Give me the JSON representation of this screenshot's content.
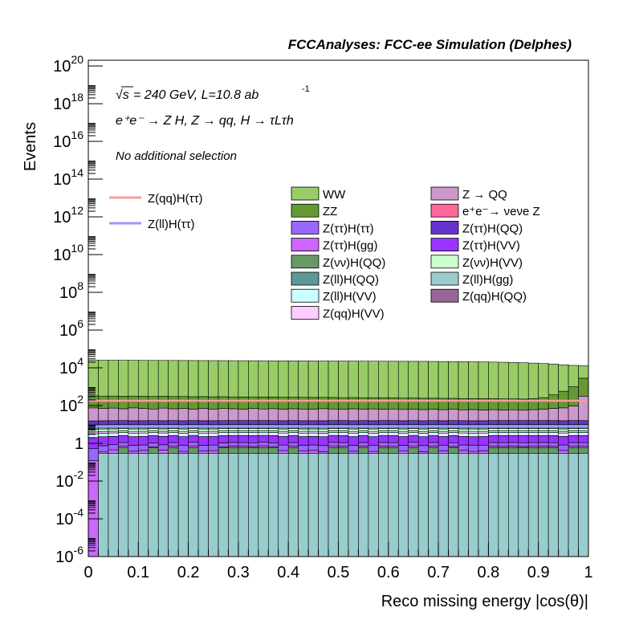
{
  "header": {
    "title": "FCCAnalyses: FCC-ee Simulation (Delphes)"
  },
  "annotations": {
    "line1_sqrt": "√s",
    "line1_rest": "= 240 GeV, L=10.8 ab",
    "line1_exp": "-1",
    "line2": "e⁺e⁻ → Z H, Z → qq, H → τLτh",
    "line3": "No additional selection"
  },
  "chart_data": {
    "type": "area",
    "title": "FCCAnalyses: FCC-ee Simulation (Delphes)",
    "xlabel": "Reco missing energy |cos(θ)|",
    "ylabel": "Events",
    "xlim": [
      0,
      1
    ],
    "ylim": [
      1e-06,
      2e+20
    ],
    "yscale": "log",
    "xticks": [
      "0",
      "0.1",
      "0.2",
      "0.3",
      "0.4",
      "0.5",
      "0.6",
      "0.7",
      "0.8",
      "0.9",
      "1"
    ],
    "yticks": [
      "10^-6",
      "10^-4",
      "10^-2",
      "1",
      "10^2",
      "10^4",
      "10^6",
      "10^8",
      "10^10",
      "10^12",
      "10^14",
      "10^16",
      "10^18",
      "10^20"
    ],
    "nbins": 50,
    "grid": false,
    "stack_order_bottom_to_top": [
      "Z(ll)H(gg)",
      "Z(νν)H(QQ)",
      "Z(qq)H(QQ)",
      "e+e- → νeνe Z",
      "Z(ττ)H(gg)",
      "Z(ττ)H(ττ)",
      "Z(ττ)H(VV)",
      "Z(ll)H(VV)",
      "Z(qq)H(VV)",
      "Z(νν)H(VV)",
      "Z(ll)H(QQ)",
      "Z(ττ)H(QQ)",
      "Z → QQ",
      "ZZ",
      "WW"
    ],
    "stack": [
      {
        "name": "WW",
        "color": "#99cc66",
        "values": [
          25000,
          25000,
          24900,
          24800,
          24700,
          24600,
          24500,
          24400,
          24300,
          24200,
          24100,
          24000,
          23900,
          23800,
          23700,
          23600,
          23500,
          23400,
          23300,
          23200,
          23100,
          23000,
          22900,
          22800,
          22700,
          22600,
          22500,
          22400,
          22300,
          22200,
          22100,
          22000,
          21900,
          21800,
          21600,
          21400,
          21200,
          21000,
          20700,
          20400,
          20000,
          19600,
          19000,
          18400,
          17600,
          16700,
          15600,
          14000,
          12500,
          10000
        ]
      },
      {
        "name": "ZZ",
        "color": "#669933",
        "values": [
          250,
          248,
          246,
          244,
          242,
          240,
          238,
          236,
          234,
          232,
          230,
          228,
          226,
          224,
          222,
          220,
          218,
          216,
          214,
          212,
          210,
          208,
          206,
          204,
          202,
          200,
          198,
          196,
          194,
          192,
          190,
          188,
          186,
          184,
          182,
          180,
          178,
          176,
          174,
          172,
          170,
          168,
          166,
          165,
          170,
          200,
          300,
          500,
          900,
          2500
        ]
      },
      {
        "name": "Z → QQ",
        "color": "#cc99cc",
        "values": [
          60,
          55,
          58,
          52,
          60,
          55,
          50,
          58,
          52,
          55,
          48,
          56,
          50,
          54,
          52,
          48,
          55,
          50,
          53,
          49,
          52,
          50,
          48,
          53,
          50,
          47,
          52,
          49,
          51,
          48,
          50,
          47,
          49,
          46,
          48,
          45,
          47,
          44,
          46,
          43,
          45,
          42,
          44,
          41,
          45,
          48,
          55,
          60,
          80,
          300
        ]
      },
      {
        "name": "e⁺e⁻→ νeνe Z",
        "color": "#ff6699",
        "values": [
          0,
          0,
          0,
          0,
          0,
          0,
          0,
          0,
          0,
          0,
          0,
          0,
          0,
          0,
          0,
          0,
          0,
          0,
          0,
          0,
          0,
          0,
          0,
          0,
          0,
          0,
          0,
          0,
          0,
          0,
          0,
          0,
          0,
          0,
          0,
          0,
          0,
          0,
          0,
          0,
          0,
          0,
          0,
          0,
          0,
          0,
          0,
          0,
          0,
          0
        ]
      },
      {
        "name": "Z(ττ)H(QQ)",
        "color": "#6633cc",
        "values": [
          6,
          6,
          6,
          6,
          6,
          6,
          6,
          6,
          6,
          6,
          6,
          6,
          6,
          6,
          6,
          6,
          6,
          6,
          6,
          6,
          6,
          6,
          6,
          6,
          6,
          6,
          6,
          6,
          6,
          6,
          6,
          6,
          6,
          6,
          6,
          6,
          6,
          6,
          6,
          6,
          6,
          6,
          6,
          6,
          6,
          6,
          6,
          6,
          6,
          6
        ]
      },
      {
        "name": "Z(ll)H(QQ)",
        "color": "#5c9999",
        "values": [
          4,
          4,
          4,
          4,
          4,
          4,
          4,
          4,
          4,
          4,
          4,
          4,
          4,
          4,
          4,
          4,
          4,
          4,
          4,
          4,
          4,
          4,
          4,
          4,
          4,
          4,
          4,
          4,
          4,
          4,
          4,
          4,
          4,
          4,
          4,
          4,
          4,
          4,
          4,
          4,
          4,
          4,
          4,
          4,
          4,
          4,
          4,
          4,
          4,
          4
        ]
      },
      {
        "name": "Z(νν)H(VV)",
        "color": "#ccffcc",
        "values": [
          1.5,
          1.5,
          1.5,
          1.5,
          1.5,
          1.5,
          1.5,
          1.5,
          1.5,
          1.5,
          1.5,
          1.5,
          1.5,
          1.5,
          1.5,
          1.5,
          1.5,
          1.5,
          1.5,
          1.5,
          1.5,
          1.5,
          1.5,
          1.5,
          1.5,
          1.5,
          1.5,
          1.5,
          1.5,
          1.5,
          1.5,
          1.5,
          1.5,
          1.5,
          1.5,
          1.5,
          1.5,
          1.5,
          1.5,
          1.5,
          1.5,
          1.5,
          1.5,
          1.5,
          1.5,
          1.5,
          1.5,
          1.5,
          1.5,
          1.5
        ]
      },
      {
        "name": "Z(qq)H(VV)",
        "color": "#ffccff",
        "values": [
          0.8,
          0.8,
          0.8,
          0.8,
          0.8,
          0.8,
          0.8,
          0.8,
          0.8,
          0.8,
          0.8,
          0.8,
          0.8,
          0.8,
          0.8,
          0.8,
          0.8,
          0.8,
          0.8,
          0.8,
          0.8,
          0.8,
          0.8,
          0.8,
          0.8,
          0.8,
          0.8,
          0.8,
          0.8,
          0.8,
          0.8,
          0.8,
          0.8,
          0.8,
          0.8,
          0.8,
          0.8,
          0.8,
          0.8,
          0.8,
          0.8,
          0.8,
          0.8,
          0.8,
          0.8,
          0.8,
          0.8,
          0.8,
          0.8,
          0.8
        ]
      },
      {
        "name": "Z(ll)H(VV)",
        "color": "#ccffff",
        "values": [
          1.2,
          1.2,
          1.2,
          1.2,
          1.2,
          1.2,
          1.2,
          1.2,
          1.2,
          1.2,
          1.2,
          1.2,
          1.2,
          1.2,
          1.2,
          1.2,
          1.2,
          1.2,
          1.2,
          1.2,
          1.2,
          1.2,
          1.2,
          1.2,
          1.2,
          1.2,
          1.2,
          1.2,
          1.2,
          1.2,
          1.2,
          1.2,
          1.2,
          1.2,
          1.2,
          1.2,
          1.2,
          1.2,
          1.2,
          1.2,
          1.2,
          1.2,
          1.2,
          1.2,
          1.2,
          1.2,
          1.2,
          1.2,
          1.2,
          1.2
        ]
      },
      {
        "name": "Z(ττ)H(VV)",
        "color": "#9933ff",
        "values": [
          1.5,
          1.5,
          1.5,
          1.5,
          1.5,
          1.5,
          1.5,
          1.5,
          1.5,
          1.5,
          1.5,
          1.5,
          1.5,
          1.5,
          1.5,
          1.5,
          1.5,
          1.5,
          1.5,
          1.5,
          1.5,
          1.5,
          1.5,
          1.5,
          1.5,
          1.5,
          1.5,
          1.5,
          1.5,
          1.5,
          1.5,
          1.5,
          1.5,
          1.5,
          1.5,
          1.5,
          1.5,
          1.5,
          1.5,
          1.5,
          1.5,
          1.5,
          1.5,
          1.5,
          1.5,
          1.5,
          1.5,
          1.5,
          1.5,
          1.5
        ]
      },
      {
        "name": "Z(ττ)H(ττ)",
        "color": "#9966ff",
        "values": [
          0.4,
          0.4,
          0.4,
          0.4,
          0.4,
          0.4,
          0.4,
          0.4,
          0.4,
          0.4,
          0.4,
          0.4,
          0.4,
          0.4,
          0.4,
          0.4,
          0.4,
          0.4,
          0.4,
          0.4,
          0.4,
          0.4,
          0.4,
          0.4,
          0.4,
          0.4,
          0.4,
          0.4,
          0.4,
          0.4,
          0.4,
          0.4,
          0.4,
          0.4,
          0.4,
          0.4,
          0.4,
          0.4,
          0.4,
          0.4,
          0.4,
          0.4,
          0.4,
          0.4,
          0.4,
          0.4,
          0.4,
          0.4,
          0.4,
          0.4
        ]
      },
      {
        "name": "Z(ττ)H(gg)",
        "color": "#cc66ff",
        "values": [
          0.12,
          0.05,
          0.15,
          0.1,
          0.08,
          0.12,
          0.06,
          0.14,
          0.1,
          0.07,
          0.13,
          0.09,
          0.11,
          0.06,
          0.12,
          0.1,
          0.08,
          0.14,
          0.07,
          0.11,
          0.1,
          0.09,
          0.12,
          0.06,
          0.13,
          0.1,
          0.08,
          0.11,
          0.07,
          0.12,
          0.1,
          0.09,
          0.13,
          0.06,
          0.11,
          0.1,
          0.08,
          0.12,
          0.07,
          0.1,
          0.11,
          0.09,
          0.12,
          0.08,
          0.1,
          0.11,
          0.09,
          0.12,
          0.1,
          0.1
        ]
      },
      {
        "name": "Z(qq)H(QQ)",
        "color": "#996699",
        "values": [
          0,
          0,
          0,
          0,
          0,
          0,
          0,
          0,
          0,
          0,
          0,
          0,
          0,
          0,
          0,
          0,
          0,
          0,
          0,
          0,
          0,
          0,
          0,
          0,
          0,
          0,
          0,
          0,
          0,
          0,
          0,
          0,
          0,
          0,
          0,
          0,
          0,
          0,
          0,
          0,
          0,
          0,
          0,
          0,
          0,
          0,
          0,
          0,
          0,
          0
        ]
      },
      {
        "name": "Z(νν)H(QQ)",
        "color": "#669966",
        "values": [
          0,
          0,
          0,
          0,
          0,
          0,
          0,
          0,
          0,
          0,
          0,
          0,
          0,
          0,
          0,
          0,
          0,
          0,
          0,
          0,
          0,
          0,
          0,
          0,
          0,
          0,
          0,
          0,
          0,
          0,
          0,
          0,
          0,
          0,
          0,
          0,
          0,
          0,
          0,
          0,
          0,
          0,
          0,
          0,
          0,
          0,
          0,
          0,
          0,
          0
        ]
      },
      {
        "name": "Z(ll)H(gg)",
        "color": "#99cccc",
        "values": [
          0,
          0.3,
          0.3,
          0.3,
          0.3,
          0.3,
          0.3,
          0.3,
          0.3,
          0.3,
          0.3,
          0.3,
          0.3,
          0.3,
          0.3,
          0.3,
          0.3,
          0.3,
          0.3,
          0.3,
          0.3,
          0.3,
          0.3,
          0.3,
          0.3,
          0.3,
          0.3,
          0.3,
          0.3,
          0.3,
          0.3,
          0.3,
          0.3,
          0.3,
          0.3,
          0.3,
          0.3,
          0.3,
          0.3,
          0.3,
          0.3,
          0.3,
          0.3,
          0.3,
          0.3,
          0.3,
          0.3,
          0.3,
          0.3,
          0.3
        ]
      }
    ],
    "lines": [
      {
        "name": "Z(qq)H(ττ)",
        "color": "#ff9999",
        "values": [
          180,
          180,
          180,
          180,
          180,
          180,
          180,
          180,
          180,
          180,
          180,
          180,
          180,
          180,
          180,
          180,
          180,
          180,
          180,
          180,
          180,
          180,
          180,
          180,
          180,
          180,
          180,
          180,
          180,
          180,
          180,
          180,
          180,
          180,
          180,
          180,
          180,
          180,
          180,
          180,
          180,
          180,
          180,
          180,
          180,
          180,
          180,
          180,
          180,
          180
        ]
      },
      {
        "name": "Z(ll)H(ττ)",
        "color": "#9999ff",
        "values": [
          8,
          8,
          8,
          8,
          8,
          8,
          8,
          8,
          8,
          8,
          8,
          8,
          8,
          8,
          8,
          8,
          8,
          8,
          8,
          8,
          8,
          8,
          8,
          8,
          8,
          8,
          8,
          8,
          8,
          8,
          8,
          8,
          8,
          8,
          8,
          8,
          8,
          8,
          8,
          8,
          8,
          8,
          8,
          8,
          8,
          8,
          8,
          8,
          8,
          8
        ]
      }
    ],
    "sparse_bins": {
      "Z(νν)H(QQ)": {
        "bins": [
          3,
          6,
          8,
          10,
          13,
          14,
          15,
          16,
          17,
          18,
          20,
          24,
          25,
          27,
          29,
          30,
          32,
          34,
          36,
          40,
          41,
          42,
          43,
          44,
          45,
          46,
          48,
          49
        ],
        "value": 0.3
      },
      "e⁺e⁻→ νeνe Z": {
        "bins": [
          22,
          23,
          35,
          40,
          41,
          44,
          45,
          47,
          48
        ],
        "value": 0.3
      },
      "Z(qq)H(QQ)": {
        "bins": [
          19
        ],
        "value": 0.0003
      }
    },
    "legend": {
      "left": [
        "Z(qq)H(ττ)",
        "Z(ll)H(ττ)"
      ],
      "col1": [
        "WW",
        "ZZ",
        "Z(ττ)H(ττ)",
        "Z(ττ)H(gg)",
        "Z(νν)H(QQ)",
        "Z(ll)H(QQ)",
        "Z(ll)H(VV)",
        "Z(qq)H(VV)"
      ],
      "col2": [
        "Z → QQ",
        "e⁺e⁻→ νeνe Z",
        "Z(ττ)H(QQ)",
        "Z(ττ)H(VV)",
        "Z(νν)H(VV)",
        "Z(ll)H(gg)",
        "Z(qq)H(QQ)"
      ]
    }
  }
}
